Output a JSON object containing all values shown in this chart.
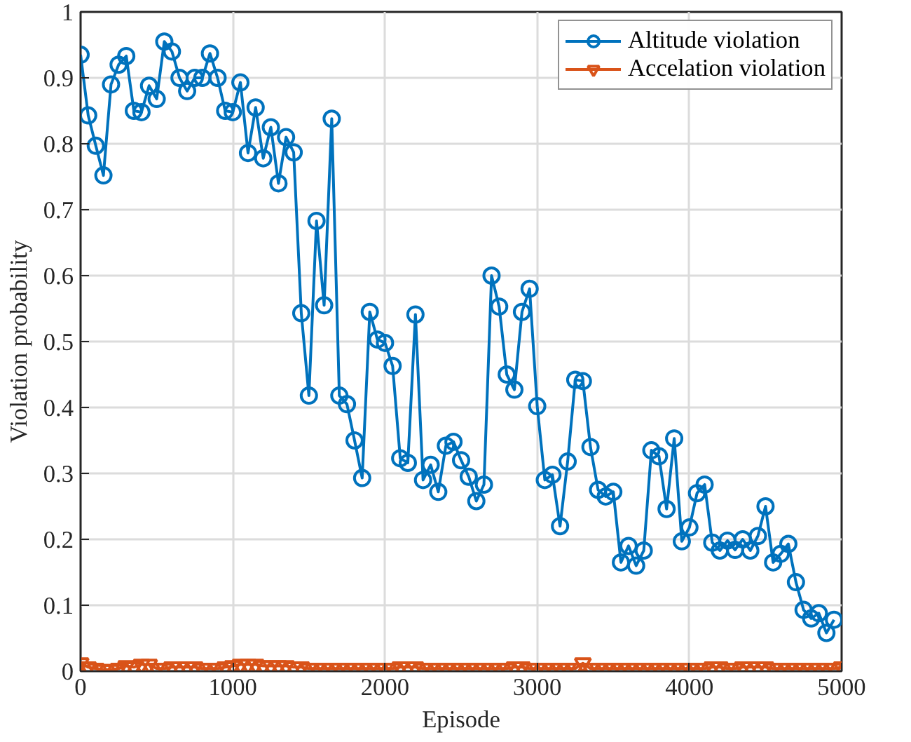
{
  "chart_data": {
    "type": "line",
    "xlabel": "Episode",
    "ylabel": "Violation probability",
    "xlim": [
      0,
      5000
    ],
    "ylim": [
      0,
      1
    ],
    "xticks": [
      0,
      1000,
      2000,
      3000,
      4000,
      5000
    ],
    "yticks": [
      0,
      0.1,
      0.2,
      0.3,
      0.4,
      0.5,
      0.6,
      0.7,
      0.8,
      0.9,
      1
    ],
    "grid": true,
    "legend": "top right",
    "line_style": "solid",
    "series": [
      {
        "name": "Altitude violation",
        "color": "#0072bd",
        "marker": "circle",
        "x": [
          0,
          50,
          100,
          150,
          200,
          250,
          300,
          350,
          400,
          450,
          500,
          550,
          600,
          650,
          700,
          750,
          800,
          850,
          900,
          950,
          1000,
          1050,
          1100,
          1150,
          1200,
          1250,
          1300,
          1350,
          1400,
          1450,
          1500,
          1550,
          1600,
          1650,
          1700,
          1750,
          1800,
          1850,
          1900,
          1950,
          2000,
          2050,
          2100,
          2150,
          2200,
          2250,
          2300,
          2350,
          2400,
          2450,
          2500,
          2550,
          2600,
          2650,
          2700,
          2750,
          2800,
          2850,
          2900,
          2950,
          3000,
          3050,
          3100,
          3150,
          3200,
          3250,
          3300,
          3350,
          3400,
          3450,
          3500,
          3550,
          3600,
          3650,
          3700,
          3750,
          3800,
          3850,
          3900,
          3950,
          4000,
          4050,
          4100,
          4150,
          4200,
          4250,
          4300,
          4350,
          4400,
          4450,
          4500,
          4550,
          4600,
          4650,
          4700,
          4750,
          4800,
          4850,
          4900,
          4950
        ],
        "values": [
          0.935,
          0.843,
          0.797,
          0.752,
          0.89,
          0.92,
          0.933,
          0.85,
          0.848,
          0.888,
          0.868,
          0.955,
          0.94,
          0.9,
          0.88,
          0.9,
          0.9,
          0.937,
          0.9,
          0.85,
          0.848,
          0.893,
          0.786,
          0.855,
          0.778,
          0.825,
          0.74,
          0.81,
          0.787,
          0.543,
          0.418,
          0.683,
          0.555,
          0.838,
          0.418,
          0.405,
          0.35,
          0.293,
          0.545,
          0.503,
          0.498,
          0.463,
          0.323,
          0.316,
          0.541,
          0.29,
          0.313,
          0.272,
          0.342,
          0.348,
          0.32,
          0.295,
          0.258,
          0.283,
          0.6,
          0.553,
          0.45,
          0.427,
          0.545,
          0.58,
          0.402,
          0.29,
          0.298,
          0.22,
          0.318,
          0.442,
          0.44,
          0.34,
          0.275,
          0.265,
          0.272,
          0.165,
          0.19,
          0.16,
          0.183,
          0.335,
          0.326,
          0.246,
          0.353,
          0.197,
          0.218,
          0.27,
          0.283,
          0.195,
          0.183,
          0.198,
          0.184,
          0.2,
          0.183,
          0.205,
          0.25,
          0.165,
          0.178,
          0.193,
          0.135,
          0.093,
          0.08,
          0.088,
          0.058,
          0.078
        ]
      },
      {
        "name": "Accelation violation",
        "color": "#d95319",
        "marker": "triangle_down",
        "x": [
          0,
          50,
          100,
          150,
          200,
          250,
          300,
          350,
          400,
          450,
          500,
          550,
          600,
          650,
          700,
          750,
          800,
          850,
          900,
          950,
          1000,
          1050,
          1100,
          1150,
          1200,
          1250,
          1300,
          1350,
          1400,
          1450,
          1500,
          1550,
          1600,
          1650,
          1700,
          1750,
          1800,
          1850,
          1900,
          1950,
          2000,
          2050,
          2100,
          2150,
          2200,
          2250,
          2300,
          2350,
          2400,
          2450,
          2500,
          2550,
          2600,
          2650,
          2700,
          2750,
          2800,
          2850,
          2900,
          2950,
          3000,
          3050,
          3100,
          3150,
          3200,
          3250,
          3300,
          3350,
          3400,
          3450,
          3500,
          3550,
          3600,
          3650,
          3700,
          3750,
          3800,
          3850,
          3900,
          3950,
          4000,
          4050,
          4100,
          4150,
          4200,
          4250,
          4300,
          4350,
          4400,
          4450,
          4500,
          4550,
          4600,
          4650,
          4700,
          4750,
          4800,
          4850,
          4900,
          4950,
          5000
        ],
        "values": [
          0.012,
          0.006,
          0.004,
          0.002,
          0.002,
          0.004,
          0.008,
          0.006,
          0.01,
          0.01,
          0.004,
          0.004,
          0.006,
          0.006,
          0.006,
          0.006,
          0.004,
          0.004,
          0.004,
          0.006,
          0.008,
          0.01,
          0.01,
          0.01,
          0.008,
          0.008,
          0.008,
          0.008,
          0.006,
          0.006,
          0.004,
          0.004,
          0.004,
          0.004,
          0.004,
          0.004,
          0.004,
          0.004,
          0.004,
          0.004,
          0.004,
          0.004,
          0.006,
          0.006,
          0.006,
          0.004,
          0.004,
          0.004,
          0.004,
          0.004,
          0.004,
          0.004,
          0.004,
          0.004,
          0.004,
          0.004,
          0.004,
          0.006,
          0.006,
          0.004,
          0.004,
          0.004,
          0.004,
          0.004,
          0.004,
          0.004,
          0.012,
          0.004,
          0.004,
          0.004,
          0.004,
          0.004,
          0.004,
          0.004,
          0.004,
          0.004,
          0.004,
          0.004,
          0.004,
          0.004,
          0.004,
          0.004,
          0.004,
          0.006,
          0.006,
          0.004,
          0.004,
          0.006,
          0.006,
          0.006,
          0.006,
          0.004,
          0.004,
          0.004,
          0.004,
          0.004,
          0.004,
          0.004,
          0.004,
          0.004,
          0.006
        ]
      }
    ]
  }
}
